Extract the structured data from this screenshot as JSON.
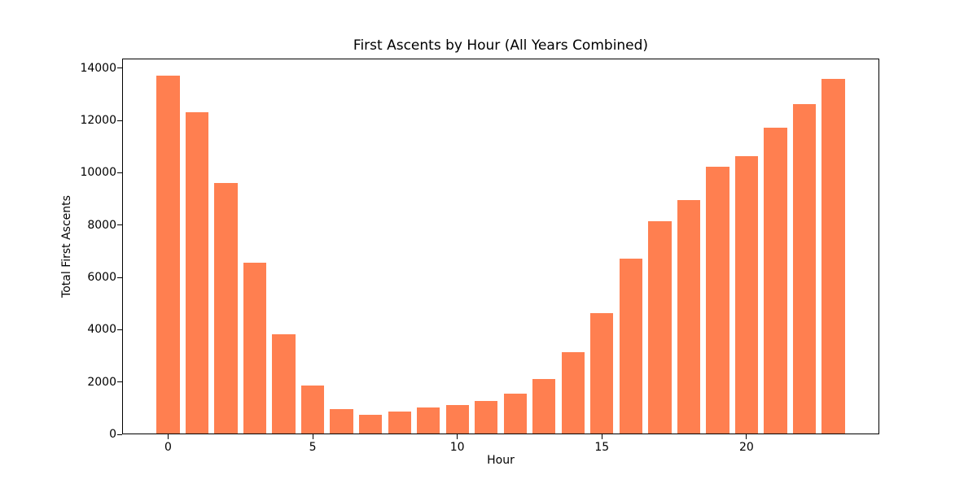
{
  "chart_data": {
    "type": "bar",
    "title": "First Ascents by Hour (All Years Combined)",
    "xlabel": "Hour",
    "ylabel": "Total First Ascents",
    "x": [
      0,
      1,
      2,
      3,
      4,
      5,
      6,
      7,
      8,
      9,
      10,
      11,
      12,
      13,
      14,
      15,
      16,
      17,
      18,
      19,
      20,
      21,
      22,
      23
    ],
    "values": [
      13680,
      12280,
      9570,
      6540,
      3810,
      1830,
      930,
      730,
      845,
      990,
      1080,
      1240,
      1540,
      2090,
      3120,
      4610,
      6700,
      8110,
      8940,
      10200,
      10600,
      11700,
      12590,
      13550
    ],
    "x_ticks": [
      0,
      5,
      10,
      15,
      20
    ],
    "y_ticks": [
      0,
      2000,
      4000,
      6000,
      8000,
      10000,
      12000,
      14000
    ],
    "xlim": [
      -1.59,
      24.59
    ],
    "ylim": [
      0,
      14364
    ],
    "bar_width": 0.8,
    "bar_color": "#FF7F50",
    "axis_color": "#000000",
    "background_color": "#ffffff",
    "grid": "off",
    "legend": "none"
  }
}
